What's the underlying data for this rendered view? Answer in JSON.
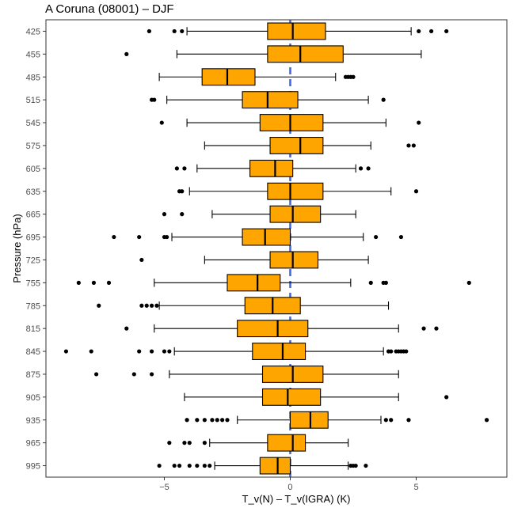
{
  "title": "A Coruna (08001) – DJF",
  "colors": {
    "box_fill": "#FFA500",
    "zero_line": "#4169E1",
    "outline": "#000000",
    "panel_border": "#333333"
  },
  "chart_data": {
    "type": "boxplot",
    "orientation": "horizontal",
    "title": "A Coruna (08001) – DJF",
    "xlabel": "T_v(N) – T_v(IGRA) (K)",
    "ylabel": "Pressure (hPa)",
    "xlim": [
      -9.7,
      8.6
    ],
    "xticks": [
      -5,
      0,
      5
    ],
    "xtick_labels": [
      "−5",
      "0",
      "5"
    ],
    "grid": false,
    "legend": "none",
    "reference_line": {
      "x": 0,
      "style": "dashed"
    },
    "categories": [
      "425",
      "455",
      "485",
      "515",
      "545",
      "575",
      "605",
      "635",
      "665",
      "695",
      "725",
      "755",
      "785",
      "815",
      "845",
      "875",
      "905",
      "935",
      "965",
      "995"
    ],
    "boxes": [
      {
        "level": "425",
        "whisker_low": -4.1,
        "q1": -0.9,
        "median": 0.1,
        "q3": 1.4,
        "whisker_high": 4.8,
        "outliers": [
          -5.6,
          -4.6,
          -4.3,
          5.1,
          5.6,
          6.2
        ]
      },
      {
        "level": "455",
        "whisker_low": -4.5,
        "q1": -0.9,
        "median": 0.4,
        "q3": 2.1,
        "whisker_high": 5.2,
        "outliers": [
          -6.5
        ]
      },
      {
        "level": "485",
        "whisker_low": -5.2,
        "q1": -3.5,
        "median": -2.5,
        "q3": -1.4,
        "whisker_high": 1.8,
        "outliers": [
          2.2,
          2.3,
          2.4,
          2.5
        ]
      },
      {
        "level": "515",
        "whisker_low": -4.9,
        "q1": -1.9,
        "median": -0.9,
        "q3": 0.3,
        "whisker_high": 3.1,
        "outliers": [
          -5.5,
          -5.4,
          3.7
        ]
      },
      {
        "level": "545",
        "whisker_low": -4.1,
        "q1": -1.2,
        "median": 0.0,
        "q3": 1.3,
        "whisker_high": 3.8,
        "outliers": [
          -5.1,
          5.1
        ]
      },
      {
        "level": "575",
        "whisker_low": -3.4,
        "q1": -0.8,
        "median": 0.4,
        "q3": 1.3,
        "whisker_high": 3.2,
        "outliers": [
          4.7,
          4.9
        ]
      },
      {
        "level": "605",
        "whisker_low": -3.7,
        "q1": -1.6,
        "median": -0.6,
        "q3": 0.1,
        "whisker_high": 2.6,
        "outliers": [
          -4.5,
          -4.2,
          2.8,
          3.1
        ]
      },
      {
        "level": "635",
        "whisker_low": -4.0,
        "q1": -0.9,
        "median": 0.0,
        "q3": 1.3,
        "whisker_high": 4.0,
        "outliers": [
          -4.4,
          -4.3,
          5.0
        ]
      },
      {
        "level": "665",
        "whisker_low": -3.1,
        "q1": -0.8,
        "median": 0.1,
        "q3": 1.2,
        "whisker_high": 2.6,
        "outliers": [
          -5.0,
          -4.3
        ]
      },
      {
        "level": "695",
        "whisker_low": -4.7,
        "q1": -1.9,
        "median": -1.0,
        "q3": 0.0,
        "whisker_high": 2.9,
        "outliers": [
          -7.0,
          -6.0,
          -5.0,
          -4.9,
          3.4,
          4.4
        ]
      },
      {
        "level": "725",
        "whisker_low": -3.4,
        "q1": -0.8,
        "median": 0.1,
        "q3": 1.1,
        "whisker_high": 3.1,
        "outliers": [
          -5.9
        ]
      },
      {
        "level": "755",
        "whisker_low": -5.4,
        "q1": -2.5,
        "median": -1.3,
        "q3": -0.4,
        "whisker_high": 2.4,
        "outliers": [
          -8.4,
          -7.8,
          -7.2,
          3.2,
          3.7,
          3.8,
          7.1
        ]
      },
      {
        "level": "785",
        "whisker_low": -5.2,
        "q1": -1.8,
        "median": -0.7,
        "q3": 0.4,
        "whisker_high": 3.9,
        "outliers": [
          -7.6,
          -5.9,
          -5.7,
          -5.5,
          -5.3
        ]
      },
      {
        "level": "815",
        "whisker_low": -5.4,
        "q1": -2.1,
        "median": -0.5,
        "q3": 0.7,
        "whisker_high": 4.3,
        "outliers": [
          -6.5,
          5.3,
          5.8
        ]
      },
      {
        "level": "845",
        "whisker_low": -4.6,
        "q1": -1.5,
        "median": -0.3,
        "q3": 0.6,
        "whisker_high": 3.7,
        "outliers": [
          -8.9,
          -7.9,
          -6.0,
          -5.5,
          -5.0,
          -4.8,
          3.9,
          4.0,
          4.2,
          4.3,
          4.4,
          4.5,
          4.6
        ]
      },
      {
        "level": "875",
        "whisker_low": -4.8,
        "q1": -1.1,
        "median": 0.1,
        "q3": 1.3,
        "whisker_high": 4.3,
        "outliers": [
          -7.7,
          -6.2,
          -5.5
        ]
      },
      {
        "level": "905",
        "whisker_low": -4.2,
        "q1": -1.1,
        "median": -0.1,
        "q3": 1.2,
        "whisker_high": 4.3,
        "outliers": [
          6.2
        ]
      },
      {
        "level": "935",
        "whisker_low": -2.1,
        "q1": 0.0,
        "median": 0.8,
        "q3": 1.5,
        "whisker_high": 3.6,
        "outliers": [
          -4.1,
          -3.7,
          -3.4,
          -3.1,
          -2.9,
          -2.7,
          -2.5,
          3.8,
          4.0,
          4.7,
          7.8
        ]
      },
      {
        "level": "965",
        "whisker_low": -3.2,
        "q1": -0.9,
        "median": 0.1,
        "q3": 0.6,
        "whisker_high": 2.3,
        "outliers": [
          -4.8,
          -4.2,
          -4.0,
          -3.4
        ]
      },
      {
        "level": "995",
        "whisker_low": -3.0,
        "q1": -1.2,
        "median": -0.5,
        "q3": 0.0,
        "whisker_high": 2.3,
        "outliers": [
          -5.2,
          -4.6,
          -4.4,
          -4.0,
          -3.7,
          -3.4,
          -3.2,
          2.4,
          2.5,
          2.6,
          3.0
        ]
      }
    ]
  }
}
